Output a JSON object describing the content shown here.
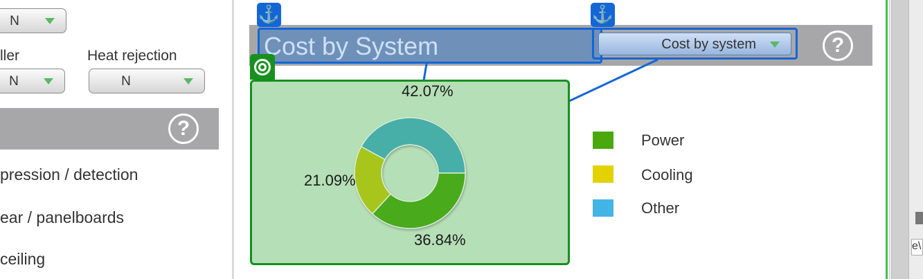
{
  "left_panel": {
    "top_dropdown": {
      "value": "N"
    },
    "chiller": {
      "label": "ller",
      "value": "N"
    },
    "heat_rejection": {
      "label": "Heat rejection",
      "value": "N"
    },
    "help_symbol": "?",
    "items": [
      "pression / detection",
      "ear / panelboards",
      " ceiling"
    ]
  },
  "header": {
    "title": "Cost by System",
    "selector": {
      "value": "Cost by system"
    },
    "help_symbol": "?"
  },
  "badges": {
    "anchor_symbol": "⚓"
  },
  "chart_data": {
    "type": "pie",
    "variant": "donut",
    "slices": [
      {
        "label": "Other",
        "value": 42.07,
        "display": "42.07%",
        "color": "#46aea8"
      },
      {
        "label": "Power",
        "value": 36.84,
        "display": "36.84%",
        "color": "#4aaa1e"
      },
      {
        "label": "Cooling",
        "value": 21.09,
        "display": "21.09%",
        "color": "#a8c51b"
      }
    ],
    "legend": {
      "placement": "right",
      "entries": [
        {
          "label": "Power",
          "color": "#4aa80c"
        },
        {
          "label": "Cooling",
          "color": "#e1d200"
        },
        {
          "label": "Other",
          "color": "#44b4e6"
        }
      ]
    }
  },
  "scrollbar": {
    "box_text": "e\\"
  }
}
